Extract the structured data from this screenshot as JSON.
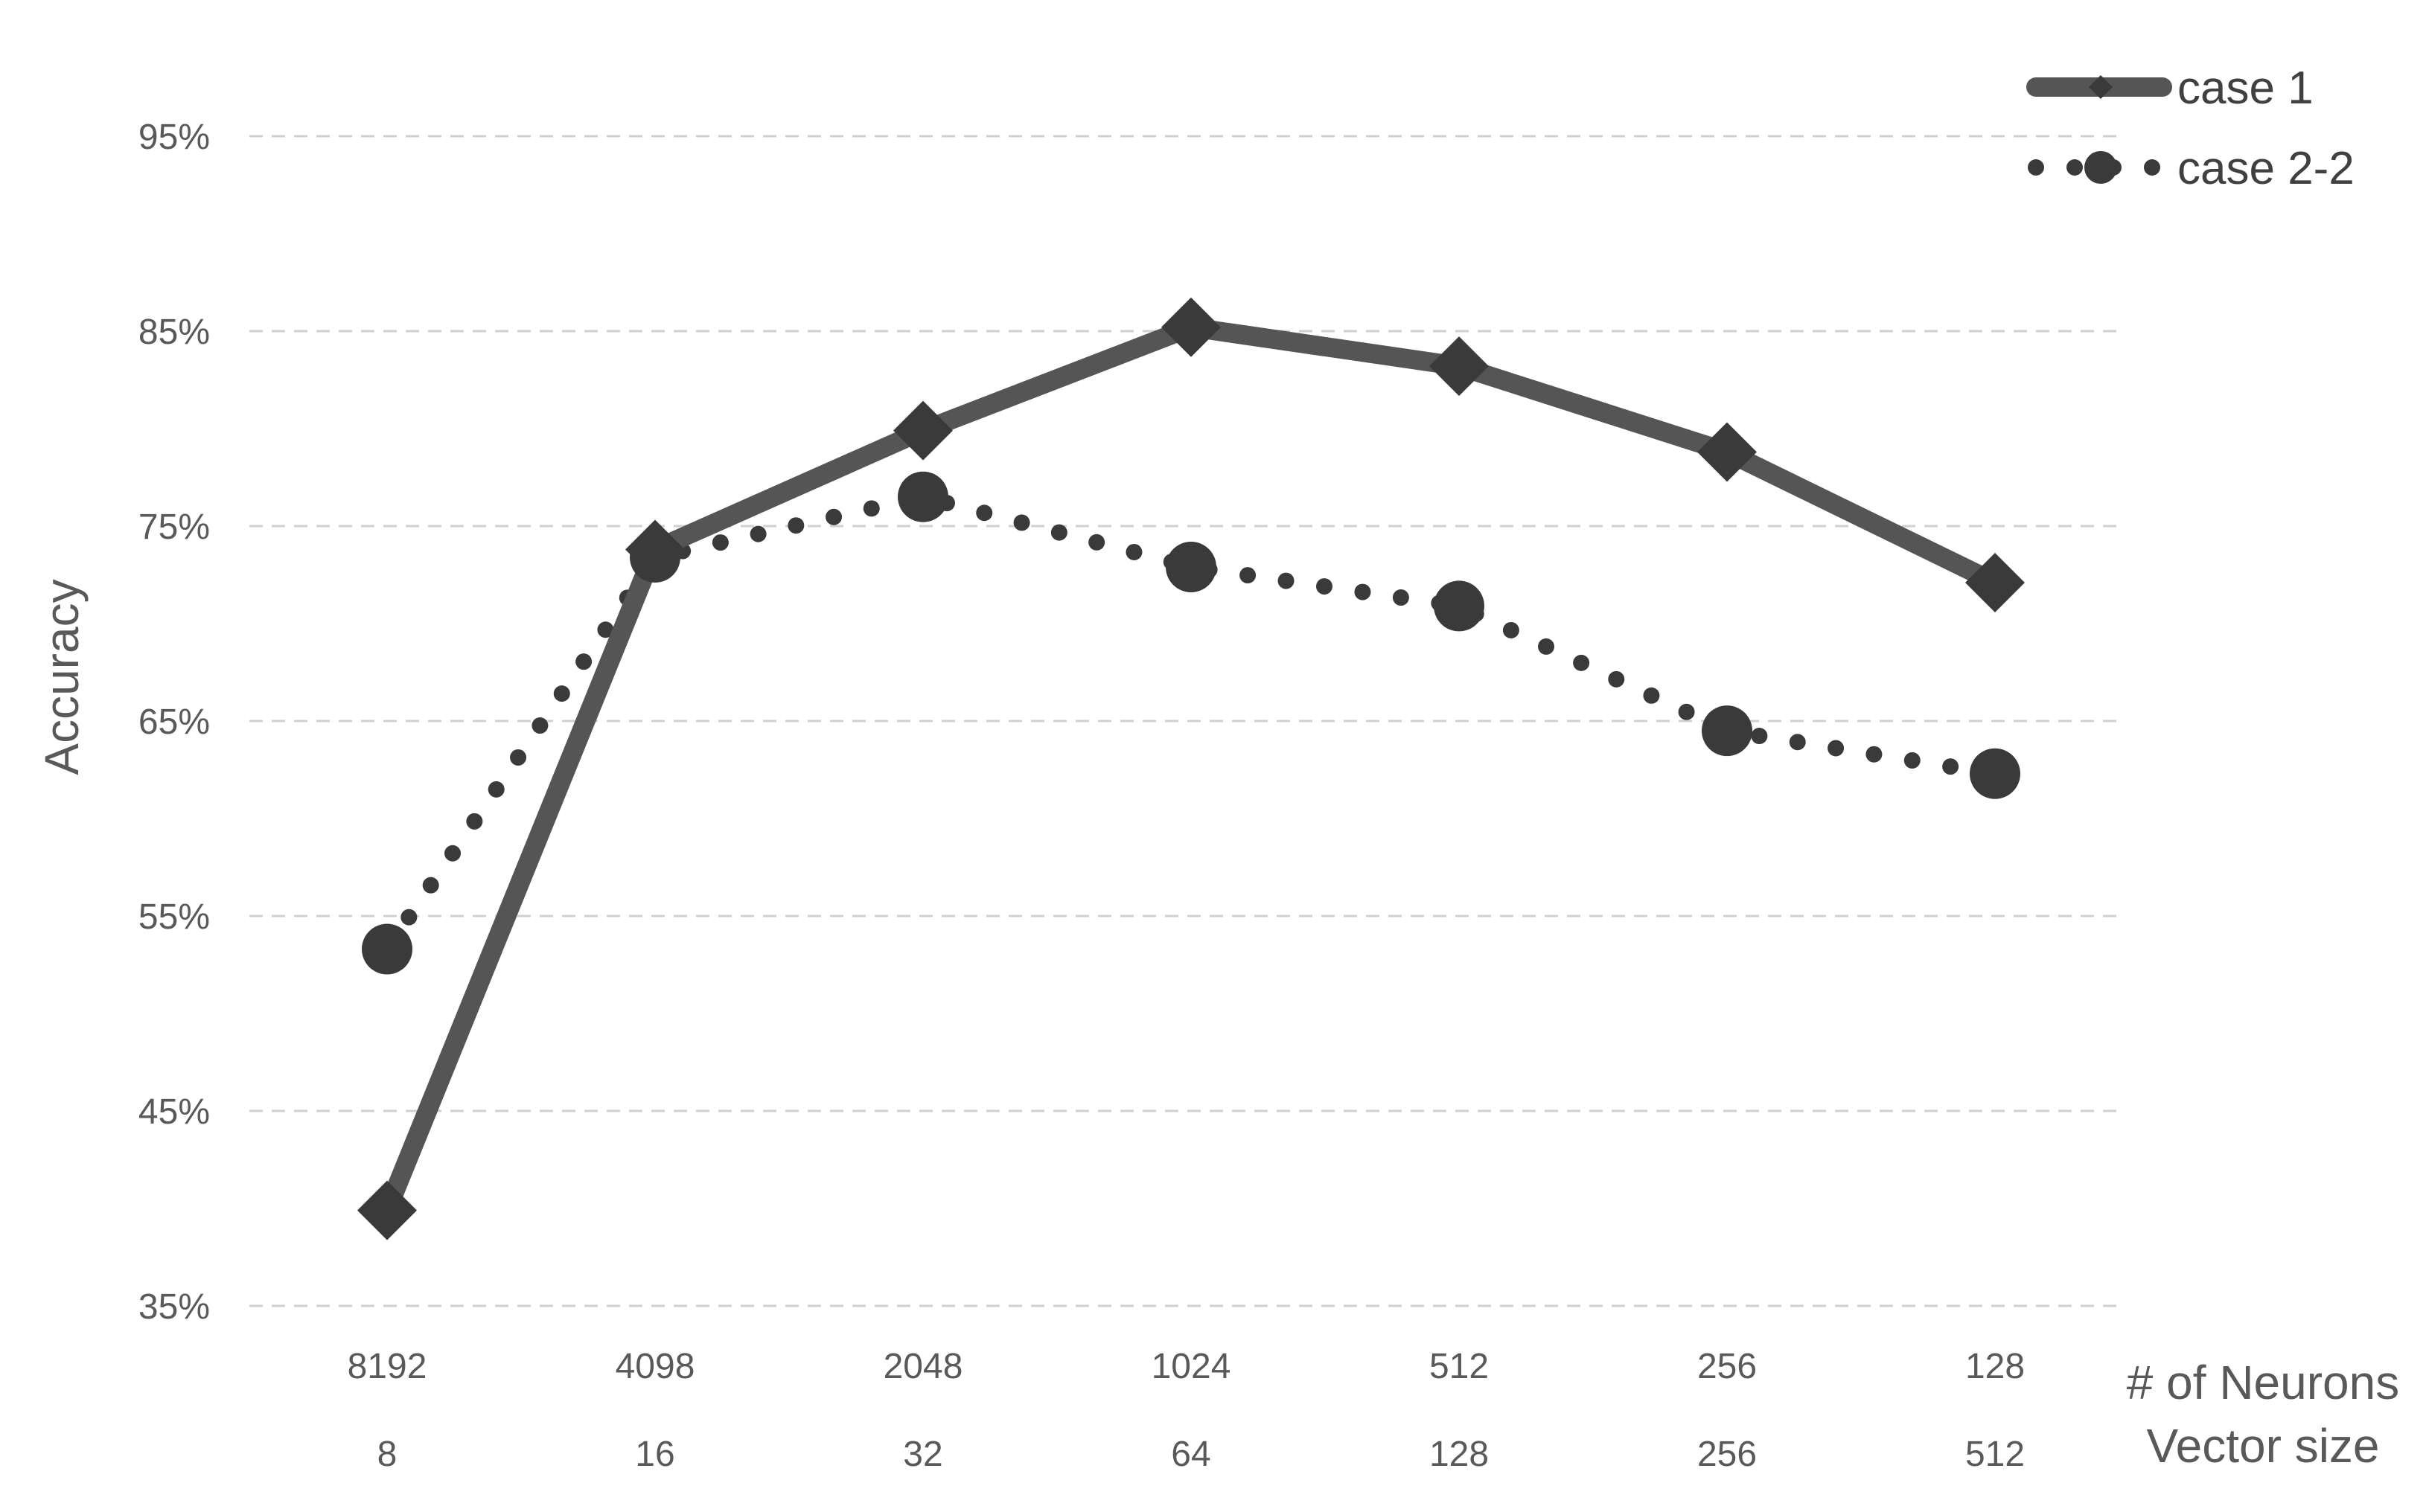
{
  "chart_data": {
    "type": "line",
    "title": "",
    "categories": [
      "8192",
      "4098",
      "2048",
      "1024",
      "512",
      "256",
      "128"
    ],
    "secondary_categories": [
      "8",
      "16",
      "32",
      "64",
      "128",
      "256",
      "512"
    ],
    "xlabel": "# of Neurons",
    "xlabel2": "Vector size",
    "ylabel": "Accuracy",
    "y_ticks": [
      "35%",
      "45%",
      "55%",
      "65%",
      "75%",
      "85%",
      "95%"
    ],
    "ylim": [
      35,
      95
    ],
    "grid": true,
    "legend_position": "top-right",
    "series": [
      {
        "name": "case 1",
        "values": [
          39.9,
          73.8,
          79.9,
          85.2,
          83.2,
          78.8,
          72.1
        ],
        "style": "solid",
        "marker": "diamond",
        "color": "#555555"
      },
      {
        "name": "case 2-2",
        "values": [
          53.3,
          73.4,
          76.5,
          72.9,
          70.9,
          64.5,
          62.3
        ],
        "style": "dotted",
        "marker": "circle",
        "color": "#3a3a3a"
      }
    ]
  }
}
